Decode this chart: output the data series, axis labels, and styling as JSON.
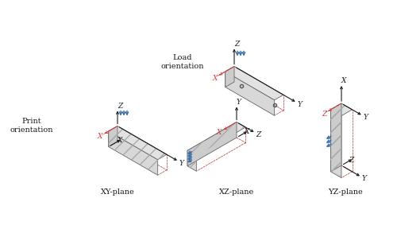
{
  "bg_color": "#ffffff",
  "box_face_top": "#e0e0e0",
  "box_face_front": "#d0d0d0",
  "box_face_side": "#c8c8c8",
  "box_edge_color": "#555555",
  "hatch_color": "#999999",
  "axis_color_solid": "#1a1a1a",
  "axis_color_dashed": "#cc4444",
  "arrow_color": "#3a6ea8",
  "text_color": "#1a1a1a",
  "load_label": "Load\norientation",
  "print_label": "Print\norientation",
  "xy_label": "XY-plane",
  "xz_label": "XZ-plane",
  "yz_label": "YZ-plane",
  "label_fontsize": 7.0,
  "axis_fontsize": 6.5,
  "figsize": [
    5.0,
    2.98
  ],
  "dpi": 100
}
